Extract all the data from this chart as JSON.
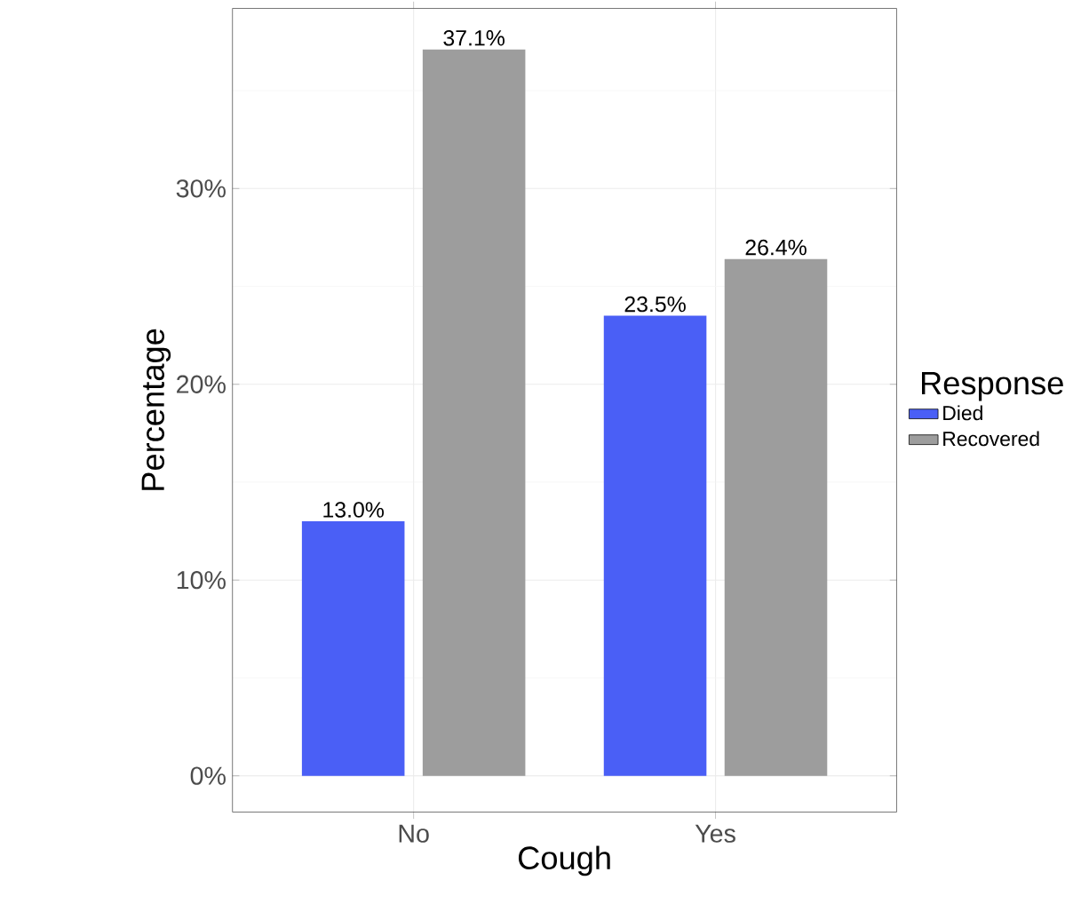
{
  "chart_data": {
    "type": "bar",
    "xlabel": "Cough",
    "ylabel": "Percentage",
    "legend_title": "Response",
    "categories": [
      "No",
      "Yes"
    ],
    "series": [
      {
        "name": "Died",
        "color": "#4a5ff6",
        "values": [
          13.0,
          23.5
        ],
        "value_labels": [
          "13.0%",
          "23.5%"
        ]
      },
      {
        "name": "Recovered",
        "color": "#9d9d9d",
        "values": [
          37.1,
          26.4
        ],
        "value_labels": [
          "37.1%",
          "26.4%"
        ]
      }
    ],
    "ylim": [
      -1.85,
      39.2
    ],
    "yticks": [
      {
        "value": 0,
        "label": "0%"
      },
      {
        "value": 10,
        "label": "10%"
      },
      {
        "value": 20,
        "label": "20%"
      },
      {
        "value": 30,
        "label": "30%"
      }
    ],
    "grid": true,
    "legend": "right"
  }
}
